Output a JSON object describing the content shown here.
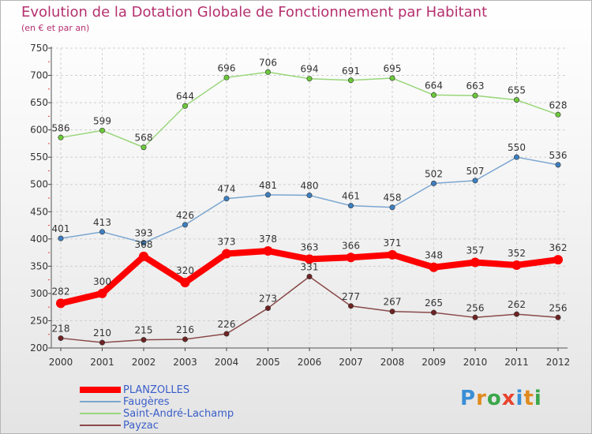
{
  "header": {
    "title": "Evolution de la Dotation Globale de Fonctionnement par Habitant",
    "subtitle": "(en € et par an)"
  },
  "logo": {
    "text": "Proxiti",
    "letter_colors": [
      "#3a8fd6",
      "#e08a1e",
      "#3aa64a",
      "#e8432f",
      "#3a8fd6",
      "#e08a1e",
      "#3aa64a"
    ]
  },
  "chart_data": {
    "type": "line",
    "x": [
      "2000",
      "2001",
      "2002",
      "2003",
      "2004",
      "2005",
      "2006",
      "2007",
      "2008",
      "2009",
      "2010",
      "2011",
      "2012"
    ],
    "ylim": [
      200,
      750
    ],
    "yticks": [
      "200",
      "250",
      "300",
      "350",
      "400",
      "450",
      "500",
      "550",
      "600",
      "650",
      "700",
      "750"
    ],
    "grid": true,
    "legend_position": "bottom-left",
    "series": [
      {
        "name": "PLANZOLLES",
        "color": "#ff0000",
        "marker_color": "#ff0000",
        "values": [
          282,
          300,
          368,
          320,
          373,
          378,
          363,
          366,
          371,
          348,
          357,
          352,
          362
        ],
        "labels": [
          "282",
          "300",
          "368",
          "320",
          "373",
          "378",
          "363",
          "366",
          "371",
          "348",
          "357",
          "352",
          "362"
        ]
      },
      {
        "name": "Faugères",
        "color": "#7ba6d0",
        "marker_color": "#3d7fc1",
        "values": [
          401,
          413,
          393,
          426,
          474,
          481,
          480,
          461,
          458,
          502,
          507,
          550,
          536
        ],
        "labels": [
          "401",
          "413",
          "393",
          "426",
          "474",
          "481",
          "480",
          "461",
          "458",
          "502",
          "507",
          "550",
          "536"
        ]
      },
      {
        "name": "Saint-André-Lachamp",
        "color": "#99d67a",
        "marker_color": "#6cc93a",
        "values": [
          586,
          599,
          568,
          644,
          696,
          706,
          694,
          691,
          695,
          664,
          663,
          655,
          628
        ],
        "labels": [
          "586",
          "599",
          "568",
          "644",
          "696",
          "706",
          "694",
          "691",
          "695",
          "664",
          "663",
          "655",
          "628"
        ]
      },
      {
        "name": "Payzac",
        "color": "#8a4a4a",
        "marker_color": "#6e2323",
        "values": [
          218,
          210,
          215,
          216,
          226,
          273,
          331,
          277,
          267,
          265,
          256,
          262,
          256
        ],
        "labels": [
          "218",
          "210",
          "215",
          "216",
          "226",
          "273",
          "331",
          "277",
          "267",
          "265",
          "256",
          "262",
          "256"
        ]
      }
    ]
  }
}
